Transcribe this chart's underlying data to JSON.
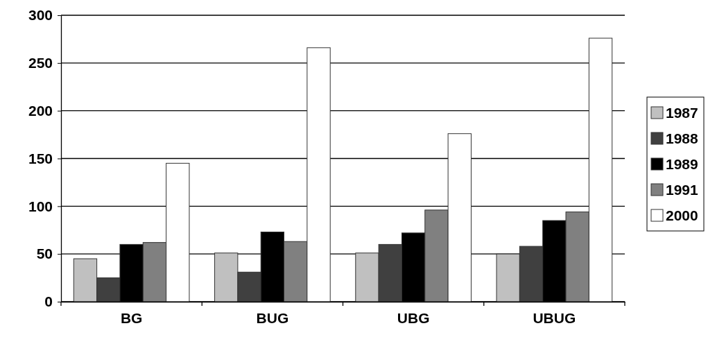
{
  "chart_data": {
    "type": "bar",
    "categories": [
      "BG",
      "BUG",
      "UBG",
      "UBUG"
    ],
    "series": [
      {
        "name": "1987",
        "color": "#c0c0c0",
        "values": [
          45,
          51,
          51,
          50
        ]
      },
      {
        "name": "1988",
        "color": "#404040",
        "values": [
          25,
          31,
          60,
          58
        ]
      },
      {
        "name": "1989",
        "color": "#000000",
        "values": [
          60,
          73,
          72,
          85
        ]
      },
      {
        "name": "1991",
        "color": "#808080",
        "values": [
          62,
          63,
          96,
          94
        ]
      },
      {
        "name": "2000",
        "color": "#ffffff",
        "values": [
          145,
          266,
          176,
          276
        ]
      }
    ],
    "ylim": [
      0,
      300
    ],
    "yticks": [
      0,
      50,
      100,
      150,
      200,
      250,
      300
    ],
    "grid": "y",
    "legend": "right"
  }
}
